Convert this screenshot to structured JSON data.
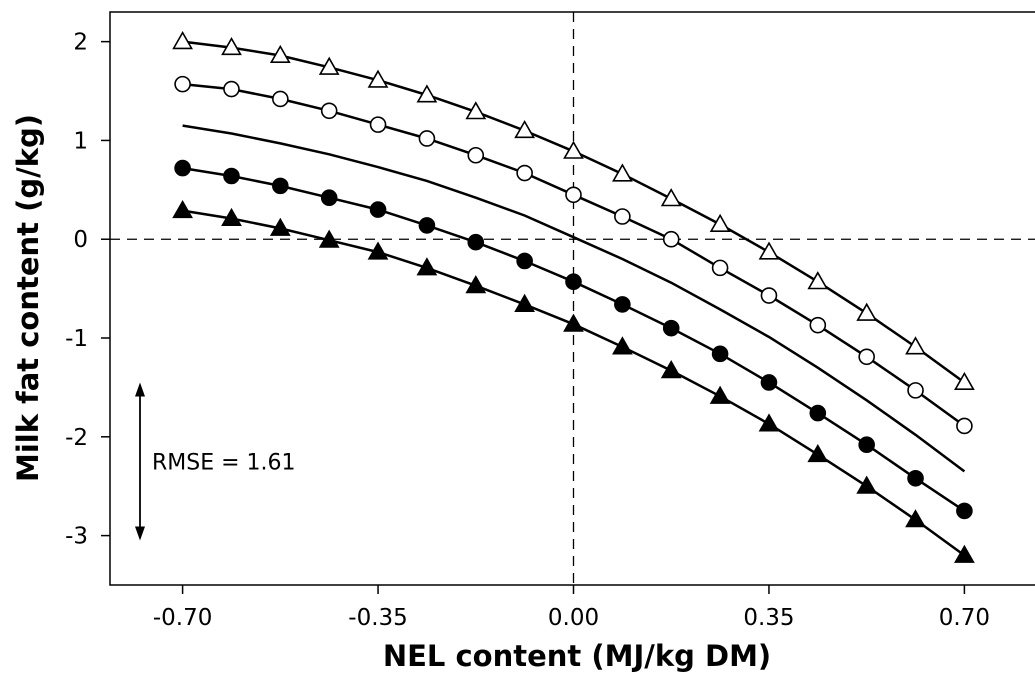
{
  "chart_data": {
    "type": "line",
    "xlabel": "NEL content (MJ/kg DM)",
    "ylabel": "Milk fat content (g/kg)",
    "x_ticks": [
      "-0.70",
      "-0.35",
      "0.00",
      "0.35",
      "0.70"
    ],
    "y_ticks": [
      "-3",
      "-2",
      "-1",
      "0",
      "1",
      "2"
    ],
    "xlim": [
      -0.83,
      0.83
    ],
    "ylim": [
      -3.5,
      2.3
    ],
    "grid": false,
    "reference_lines": {
      "x": 0,
      "y": 0,
      "style": "dashed"
    },
    "x": [
      -0.7,
      -0.6125,
      -0.525,
      -0.4375,
      -0.35,
      -0.2625,
      -0.175,
      -0.0875,
      0.0,
      0.0875,
      0.175,
      0.2625,
      0.35,
      0.4375,
      0.525,
      0.6125,
      0.7
    ],
    "series": [
      {
        "marker": "open-triangle",
        "values": [
          2.0,
          1.94,
          1.86,
          1.74,
          1.61,
          1.46,
          1.29,
          1.1,
          0.89,
          0.66,
          0.41,
          0.15,
          -0.13,
          -0.43,
          -0.75,
          -1.09,
          -1.45
        ]
      },
      {
        "marker": "open-circle",
        "values": [
          1.57,
          1.52,
          1.42,
          1.3,
          1.16,
          1.02,
          0.85,
          0.67,
          0.45,
          0.23,
          0.0,
          -0.29,
          -0.57,
          -0.87,
          -1.19,
          -1.53,
          -1.89
        ]
      },
      {
        "marker": "none",
        "values": [
          1.15,
          1.07,
          0.97,
          0.86,
          0.73,
          0.59,
          0.42,
          0.24,
          0.02,
          -0.2,
          -0.44,
          -0.71,
          -0.99,
          -1.3,
          -1.63,
          -1.98,
          -2.35
        ]
      },
      {
        "marker": "filled-circle",
        "values": [
          0.72,
          0.64,
          0.54,
          0.42,
          0.3,
          0.14,
          -0.03,
          -0.22,
          -0.43,
          -0.66,
          -0.9,
          -1.16,
          -1.45,
          -1.76,
          -2.08,
          -2.42,
          -2.75
        ]
      },
      {
        "marker": "filled-triangle",
        "values": [
          0.29,
          0.21,
          0.11,
          -0.01,
          -0.13,
          -0.29,
          -0.47,
          -0.66,
          -0.86,
          -1.09,
          -1.33,
          -1.59,
          -1.87,
          -2.18,
          -2.5,
          -2.84,
          -3.2
        ]
      }
    ],
    "annotations": [
      {
        "text": "RMSE = 1.61",
        "arrow_y_range": [
          -3.05,
          -1.45
        ],
        "arrow_x": -0.83
      }
    ]
  }
}
